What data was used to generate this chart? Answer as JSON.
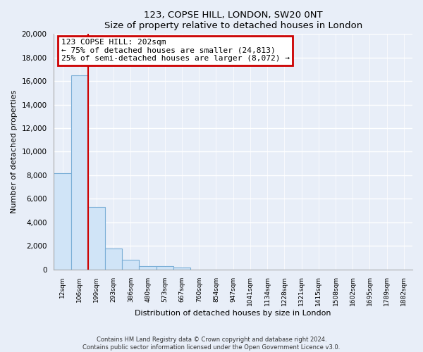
{
  "title": "123, COPSE HILL, LONDON, SW20 0NT",
  "subtitle": "Size of property relative to detached houses in London",
  "xlabel": "Distribution of detached houses by size in London",
  "ylabel": "Number of detached properties",
  "bar_labels": [
    "12sqm",
    "106sqm",
    "199sqm",
    "293sqm",
    "386sqm",
    "480sqm",
    "573sqm",
    "667sqm",
    "760sqm",
    "854sqm",
    "947sqm",
    "1041sqm",
    "1134sqm",
    "1228sqm",
    "1321sqm",
    "1415sqm",
    "1508sqm",
    "1602sqm",
    "1695sqm",
    "1789sqm",
    "1882sqm"
  ],
  "bar_values": [
    8200,
    16500,
    5300,
    1800,
    800,
    300,
    250,
    130,
    0,
    0,
    0,
    0,
    0,
    0,
    0,
    0,
    0,
    0,
    0,
    0,
    0
  ],
  "bar_fill_color": "#d0e4f7",
  "bar_edge_color": "#7aaed6",
  "vline_color": "#cc0000",
  "annotation_title": "123 COPSE HILL: 202sqm",
  "annotation_line1": "← 75% of detached houses are smaller (24,813)",
  "annotation_line2": "25% of semi-detached houses are larger (8,072) →",
  "annotation_box_color": "#ffffff",
  "annotation_box_edge": "#cc0000",
  "ylim": [
    0,
    20000
  ],
  "yticks": [
    0,
    2000,
    4000,
    6000,
    8000,
    10000,
    12000,
    14000,
    16000,
    18000,
    20000
  ],
  "footer_line1": "Contains HM Land Registry data © Crown copyright and database right 2024.",
  "footer_line2": "Contains public sector information licensed under the Open Government Licence v3.0.",
  "bg_color": "#e8eef8",
  "grid_color": "#c8d4e8"
}
